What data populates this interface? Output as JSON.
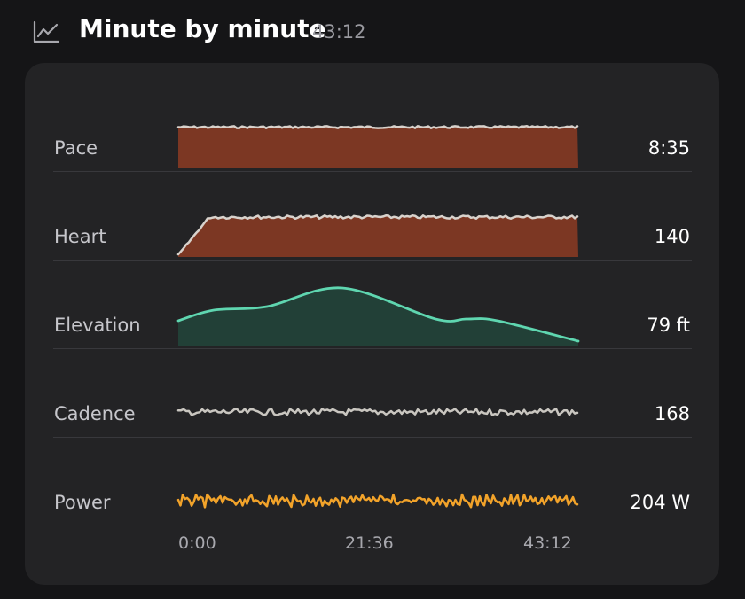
{
  "header": {
    "icon": "line-chart-icon",
    "title": "Minute by minute",
    "duration": "43:12"
  },
  "metrics": [
    {
      "label": "Pace",
      "value": "8:35",
      "color": "#7c3723",
      "line_color": "#d8d2cc"
    },
    {
      "label": "Heart",
      "value": "140",
      "color": "#7c3723",
      "line_color": "#d8d2cc"
    },
    {
      "label": "Elevation",
      "value": "79 ft",
      "color": "#224037",
      "line_color": "#5fd6b0"
    },
    {
      "label": "Cadence",
      "value": "168",
      "line_color": "#c9c6c0"
    },
    {
      "label": "Power",
      "value": "204 W",
      "line_color": "#f2a32a"
    }
  ],
  "x_axis": {
    "start": "0:00",
    "mid": "21:36",
    "end": "43:12"
  }
}
